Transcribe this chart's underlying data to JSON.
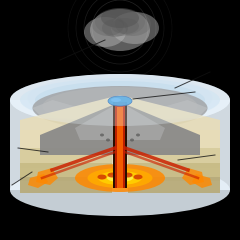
{
  "fig_size": [
    2.4,
    2.4
  ],
  "dpi": 100,
  "background": "#000000",
  "ice_white": "#e8f2fa",
  "ice_blue_light": "#c5dff0",
  "ice_blue_mid": "#a8cce4",
  "rock_dark": "#7a7a7a",
  "rock_mid": "#9a9a9a",
  "rock_light": "#b8b8b8",
  "stratum1": "#e8ddb8",
  "stratum2": "#d8cd9e",
  "stratum3": "#c8bc86",
  "lava_bright": "#ffcc00",
  "lava_orange": "#ff8800",
  "lava_red": "#cc2200",
  "lava_dark": "#882200",
  "conduit_dark": "#2a0e00",
  "crater_lake": "#3399dd",
  "smoke_light": "#bbbbbb",
  "smoke_dark": "#666666",
  "ann_color": "#111111"
}
